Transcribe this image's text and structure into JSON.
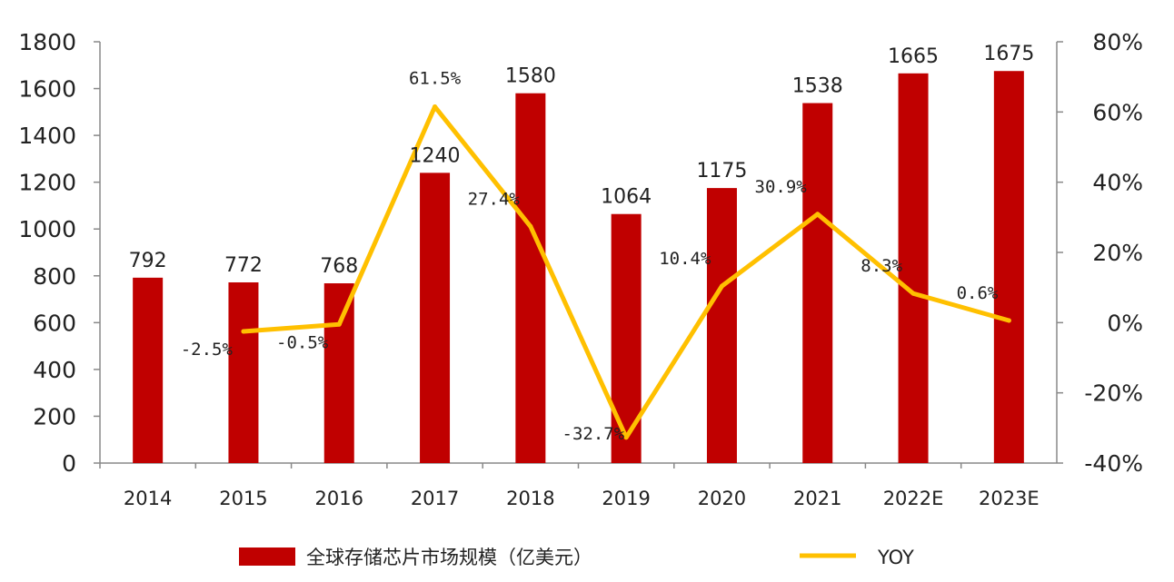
{
  "chart_data": {
    "type": "bar",
    "categories": [
      "2014",
      "2015",
      "2016",
      "2017",
      "2018",
      "2019",
      "2020",
      "2021",
      "2022E",
      "2023E"
    ],
    "series": [
      {
        "name": "全球存储芯片市场规模（亿美元）",
        "type": "bar",
        "axis": "left",
        "values": [
          792,
          772,
          768,
          1240,
          1580,
          1064,
          1175,
          1538,
          1665,
          1675
        ],
        "labels": [
          "792",
          "772",
          "768",
          "1240",
          "1580",
          "1064",
          "1175",
          "1538",
          "1665",
          "1675"
        ]
      },
      {
        "name": "YOY",
        "type": "line",
        "axis": "right",
        "values": [
          null,
          -2.5,
          -0.5,
          61.5,
          27.4,
          -32.7,
          10.4,
          30.9,
          8.3,
          0.6
        ],
        "labels": [
          "",
          "-2.5%",
          "-0.5%",
          "61.5%",
          "27.4%",
          "-32.7%",
          "10.4%",
          "30.9%",
          "8.3%",
          "0.6%"
        ]
      }
    ],
    "y_left": {
      "ylim": [
        0,
        1800
      ],
      "ticks": [
        "0",
        "200",
        "400",
        "600",
        "800",
        "1000",
        "1200",
        "1400",
        "1600",
        "1800"
      ]
    },
    "y_right": {
      "ylim": [
        -40,
        80
      ],
      "ticks": [
        "-40%",
        "-20%",
        "0%",
        "20%",
        "40%",
        "60%",
        "80%"
      ]
    },
    "grid": false,
    "legend_position": "bottom",
    "colors": {
      "bar": "#C00000",
      "line": "#FFC000",
      "axis": "#888888"
    }
  }
}
